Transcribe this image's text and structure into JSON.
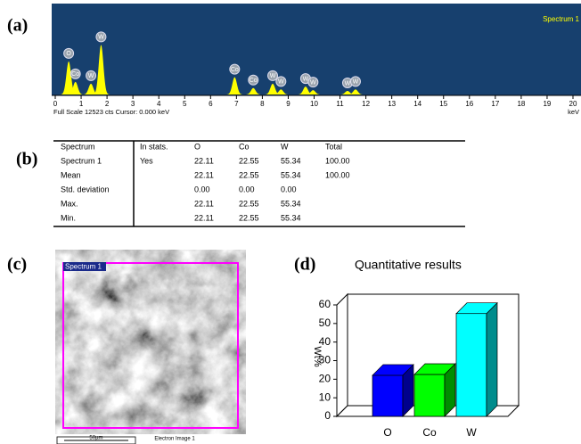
{
  "panel_labels": [
    "(a)",
    "(b)",
    "(c)",
    "(d)"
  ],
  "spectrum": {
    "title": "Spectrum 1",
    "footer": "Full Scale 12523 cts  Cursor: 0.000 keV",
    "x_unit": "keV",
    "xlim": [
      0,
      20
    ],
    "xticks": [
      0,
      1,
      2,
      3,
      4,
      5,
      6,
      7,
      8,
      9,
      10,
      11,
      12,
      13,
      14,
      15,
      16,
      17,
      18,
      19,
      20
    ],
    "ylim": [
      0,
      12523
    ],
    "color": "#ffff00",
    "peaks": [
      {
        "label": "O",
        "x": 0.52,
        "height": 4600
      },
      {
        "label": "Co",
        "x": 0.78,
        "height": 1750
      },
      {
        "label": "W",
        "x": 1.38,
        "height": 1500
      },
      {
        "label": "W",
        "x": 1.77,
        "height": 6900
      },
      {
        "label": "Co",
        "x": 6.93,
        "height": 2400
      },
      {
        "label": "Co",
        "x": 7.65,
        "height": 900
      },
      {
        "label": "W",
        "x": 8.4,
        "height": 1500
      },
      {
        "label": "W",
        "x": 8.72,
        "height": 700
      },
      {
        "label": "W",
        "x": 9.67,
        "height": 1100
      },
      {
        "label": "W",
        "x": 9.96,
        "height": 600
      },
      {
        "label": "W",
        "x": 11.29,
        "height": 500
      },
      {
        "label": "W",
        "x": 11.6,
        "height": 700
      }
    ]
  },
  "table": {
    "header": [
      "Spectrum",
      "In stats.",
      "O",
      "Co",
      "W",
      "Total"
    ],
    "rows": [
      [
        "Spectrum 1",
        "Yes",
        "22.11",
        "22.55",
        "55.34",
        "100.00"
      ],
      [
        "Mean",
        null,
        "22.11",
        "22.55",
        "55.34",
        "100.00"
      ],
      [
        "Std. deviation",
        null,
        "0.00",
        "0.00",
        "0.00",
        null
      ],
      [
        "Max.",
        null,
        "22.11",
        "22.55",
        "55.34",
        null
      ],
      [
        "Min.",
        null,
        "22.11",
        "22.55",
        "55.34",
        null
      ]
    ]
  },
  "image": {
    "region_label": "Spectrum 1",
    "scale": "50µm",
    "caption": "Electron Image 1"
  },
  "chart_data": {
    "type": "bar3d",
    "title": "Quantitative results",
    "y_label": "Wt%",
    "categories": [
      "O",
      "Co",
      "W"
    ],
    "values": [
      22.11,
      22.55,
      55.34
    ],
    "colors": [
      "#0000ff",
      "#00ff00",
      "#00ffff"
    ],
    "ylim": [
      0,
      60
    ],
    "yticks": [
      0,
      10,
      20,
      30,
      40,
      50,
      60
    ]
  }
}
